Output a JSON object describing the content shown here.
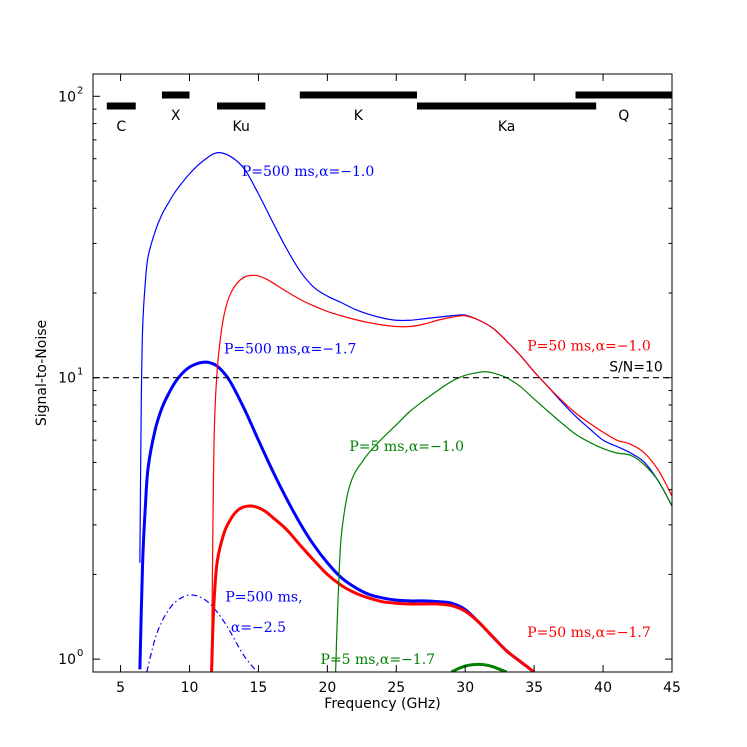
{
  "chart_data": {
    "type": "line",
    "xlabel": "Frequency (GHz)",
    "ylabel": "Signal-to-Noise",
    "yscale": "log",
    "xlim": [
      3,
      45
    ],
    "ylim": [
      0.9,
      120
    ],
    "xticks": [
      5,
      10,
      15,
      20,
      25,
      30,
      35,
      40,
      45
    ],
    "yticks": [
      {
        "value": 1,
        "label": "10",
        "exp": "0"
      },
      {
        "value": 10,
        "label": "10",
        "exp": "1"
      },
      {
        "value": 100,
        "label": "10",
        "exp": "2"
      }
    ],
    "threshold": {
      "value": 10,
      "label": "S/N=10",
      "style": "dashed",
      "color": "#000000"
    },
    "bands": [
      {
        "name": "C",
        "start": 4.0,
        "end": 6.1,
        "level": 0
      },
      {
        "name": "X",
        "start": 8.0,
        "end": 10.0,
        "level": 1
      },
      {
        "name": "Ku",
        "start": 12.0,
        "end": 15.5,
        "level": 0
      },
      {
        "name": "K",
        "start": 18.0,
        "end": 26.5,
        "level": 1
      },
      {
        "name": "Ka",
        "start": 26.5,
        "end": 39.5,
        "level": 0
      },
      {
        "name": "Q",
        "start": 38.0,
        "end": 45.0,
        "level": 1
      }
    ],
    "series": [
      {
        "name": "P=500 ms, α=−1.0",
        "color": "#0000ff",
        "width": 1.2,
        "dash": "",
        "x": [
          6.4,
          6.5,
          6.6,
          6.8,
          7.0,
          7.5,
          8.0,
          8.5,
          9.0,
          10.0,
          11.0,
          12.0,
          13.0,
          14.0,
          15.0,
          16.0,
          17.0,
          18.0,
          19.0,
          20.0,
          21.0,
          22.0,
          23.0,
          24.0,
          25.0,
          26.0,
          27.0,
          28.0,
          29.0,
          30.0,
          31.0,
          32.0,
          33.0,
          34.0,
          35.0,
          36.0,
          37.0,
          38.0,
          39.0,
          40.0,
          41.0,
          42.0,
          43.0,
          44.0,
          45.0
        ],
        "y": [
          2.2,
          8.0,
          15.0,
          22.0,
          27.0,
          33.0,
          38.0,
          42.0,
          46.0,
          53.0,
          59.0,
          63.0,
          61.0,
          55.0,
          45.0,
          36.0,
          29.0,
          24.0,
          21.0,
          19.5,
          18.5,
          17.5,
          16.8,
          16.3,
          16.0,
          16.0,
          16.2,
          16.4,
          16.6,
          16.7,
          16.0,
          15.0,
          13.5,
          12.0,
          10.5,
          9.3,
          8.2,
          7.3,
          6.6,
          6.0,
          5.7,
          5.4,
          5.0,
          4.3,
          3.5
        ]
      },
      {
        "name": "P=500 ms, α=−1.7",
        "color": "#0000ff",
        "width": 3.0,
        "dash": "",
        "x": [
          6.4,
          6.6,
          6.8,
          7.0,
          7.5,
          8.0,
          8.5,
          9.0,
          9.5,
          10.0,
          10.5,
          11.0,
          11.5,
          12.0,
          12.5,
          13.0,
          14.0,
          15.0,
          16.0,
          17.0,
          18.0,
          19.0,
          20.0,
          21.0,
          22.0,
          23.0,
          24.0,
          25.0,
          26.0,
          27.0,
          28.0,
          29.0,
          30.0,
          31.0,
          32.0,
          33.0,
          34.0,
          35.0
        ],
        "y": [
          0.92,
          2.2,
          3.5,
          4.8,
          6.5,
          7.8,
          8.8,
          9.7,
          10.4,
          10.9,
          11.2,
          11.35,
          11.3,
          11.0,
          10.4,
          9.6,
          7.7,
          6.0,
          4.7,
          3.75,
          3.05,
          2.55,
          2.2,
          1.95,
          1.8,
          1.7,
          1.65,
          1.62,
          1.61,
          1.61,
          1.6,
          1.58,
          1.5,
          1.35,
          1.2,
          1.07,
          0.98,
          0.9
        ]
      },
      {
        "name": "P=500 ms, α=−2.5",
        "color": "#0000ff",
        "width": 1.2,
        "dash": "6,3,1.5,3",
        "x": [
          6.9,
          7.5,
          8.0,
          8.5,
          9.0,
          9.5,
          10.0,
          10.5,
          11.0,
          11.5,
          12.0,
          12.5,
          13.0,
          13.5,
          14.0,
          14.5,
          14.9
        ],
        "y": [
          0.9,
          1.18,
          1.36,
          1.5,
          1.6,
          1.66,
          1.69,
          1.68,
          1.64,
          1.57,
          1.47,
          1.36,
          1.24,
          1.12,
          1.02,
          0.95,
          0.9
        ]
      },
      {
        "name": "P=50 ms, α=−1.0",
        "color": "#ff0000",
        "width": 1.2,
        "dash": "",
        "x": [
          11.6,
          11.7,
          11.8,
          12.0,
          12.3,
          12.6,
          13.0,
          13.5,
          14.0,
          14.5,
          15.0,
          15.5,
          16.0,
          17.0,
          18.0,
          19.0,
          20.0,
          21.0,
          22.0,
          23.0,
          24.0,
          25.0,
          26.0,
          27.0,
          28.0,
          29.0,
          30.0,
          31.0,
          32.0,
          33.0,
          34.0,
          35.0,
          36.0,
          37.0,
          38.0,
          39.0,
          40.0,
          41.0,
          42.0,
          43.0,
          44.0,
          45.0
        ],
        "y": [
          0.92,
          3.0,
          6.5,
          10.5,
          14.5,
          17.5,
          20.0,
          21.8,
          22.8,
          23.1,
          23.0,
          22.5,
          21.8,
          20.3,
          19.0,
          18.0,
          17.2,
          16.6,
          16.1,
          15.7,
          15.4,
          15.2,
          15.2,
          15.5,
          16.0,
          16.4,
          16.6,
          16.0,
          15.0,
          13.5,
          12.0,
          10.5,
          9.3,
          8.3,
          7.5,
          6.9,
          6.4,
          6.0,
          5.8,
          5.4,
          4.7,
          3.8
        ]
      },
      {
        "name": "P=50 ms, α=−1.7",
        "color": "#ff0000",
        "width": 3.0,
        "dash": "",
        "x": [
          11.6,
          11.75,
          12.0,
          12.5,
          13.0,
          13.5,
          14.0,
          14.5,
          15.0,
          15.5,
          16.0,
          17.0,
          18.0,
          19.0,
          20.0,
          21.0,
          22.0,
          23.0,
          24.0,
          25.0,
          26.0,
          27.0,
          28.0,
          29.0,
          30.0,
          31.0,
          32.0,
          33.0,
          34.0,
          35.0
        ],
        "y": [
          0.9,
          1.5,
          2.2,
          2.8,
          3.15,
          3.38,
          3.48,
          3.5,
          3.45,
          3.35,
          3.2,
          2.9,
          2.55,
          2.25,
          2.0,
          1.83,
          1.72,
          1.65,
          1.6,
          1.58,
          1.57,
          1.57,
          1.57,
          1.55,
          1.48,
          1.35,
          1.2,
          1.07,
          0.98,
          0.9
        ]
      },
      {
        "name": "P=5 ms, α=−1.0",
        "color": "#008000",
        "width": 1.2,
        "dash": "",
        "x": [
          20.6,
          20.7,
          20.85,
          21.0,
          21.3,
          21.6,
          22.0,
          22.5,
          23.0,
          24.0,
          25.0,
          26.0,
          27.0,
          28.0,
          29.0,
          30.0,
          31.0,
          31.5,
          32.0,
          33.0,
          34.0,
          35.0,
          36.0,
          37.0,
          38.0,
          39.0,
          40.0,
          41.0,
          42.0,
          43.0,
          44.0,
          45.0
        ],
        "y": [
          0.9,
          1.3,
          2.0,
          2.7,
          3.5,
          4.1,
          4.6,
          5.0,
          5.4,
          6.1,
          6.8,
          7.6,
          8.3,
          9.0,
          9.7,
          10.2,
          10.45,
          10.5,
          10.4,
          10.0,
          9.3,
          8.4,
          7.6,
          6.9,
          6.3,
          5.9,
          5.6,
          5.4,
          5.3,
          4.9,
          4.3,
          3.5
        ]
      },
      {
        "name": "P=5 ms, α=−1.7",
        "color": "#008000",
        "width": 3.0,
        "dash": "",
        "x": [
          29.0,
          29.5,
          30.0,
          30.5,
          31.0,
          31.5,
          32.0,
          32.5,
          33.0
        ],
        "y": [
          0.9,
          0.925,
          0.945,
          0.955,
          0.958,
          0.953,
          0.94,
          0.92,
          0.9
        ]
      }
    ],
    "annotations": [
      {
        "text": "P=500 ms,α=−1.0",
        "color": "#0000ff",
        "x": 13.8,
        "y": 52
      },
      {
        "text": "P=50 ms,α=−1.0",
        "color": "#ff0000",
        "x": 34.5,
        "y": 12.5
      },
      {
        "text": "P=500 ms,α=−1.7",
        "color": "#0000ff",
        "x": 12.5,
        "y": 12.2
      },
      {
        "text": "P=5 ms,α=−1.0",
        "color": "#008000",
        "x": 21.6,
        "y": 5.5
      },
      {
        "text": "P=500 ms,",
        "color": "#0000ff",
        "x": 12.6,
        "y": 1.6
      },
      {
        "text": "α=−2.5",
        "color": "#0000ff",
        "x": 13.0,
        "y": 1.25
      },
      {
        "text": "P=50 ms,α=−1.7",
        "color": "#ff0000",
        "x": 34.5,
        "y": 1.2
      },
      {
        "text": "P=5 ms,α=−1.7",
        "color": "#008000",
        "x": 19.5,
        "y": 0.96
      }
    ]
  }
}
